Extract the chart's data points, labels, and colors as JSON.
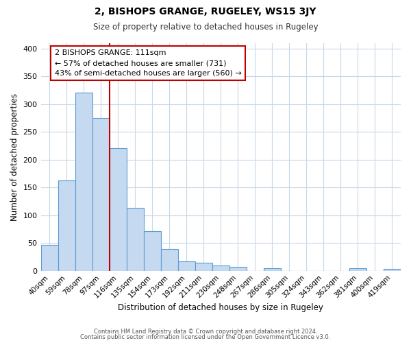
{
  "title": "2, BISHOPS GRANGE, RUGELEY, WS15 3JY",
  "subtitle": "Size of property relative to detached houses in Rugeley",
  "xlabel": "Distribution of detached houses by size in Rugeley",
  "ylabel": "Number of detached properties",
  "bar_labels": [
    "40sqm",
    "59sqm",
    "78sqm",
    "97sqm",
    "116sqm",
    "135sqm",
    "154sqm",
    "173sqm",
    "192sqm",
    "211sqm",
    "230sqm",
    "248sqm",
    "267sqm",
    "286sqm",
    "305sqm",
    "324sqm",
    "343sqm",
    "362sqm",
    "381sqm",
    "400sqm",
    "419sqm"
  ],
  "bar_heights": [
    47,
    163,
    320,
    275,
    220,
    113,
    71,
    39,
    17,
    15,
    10,
    7,
    0,
    5,
    0,
    0,
    0,
    0,
    4,
    0,
    3
  ],
  "bar_color": "#c5d9f0",
  "bar_edge_color": "#5b9bd5",
  "vline_color": "#c00000",
  "annotation_title": "2 BISHOPS GRANGE: 111sqm",
  "annotation_line1": "← 57% of detached houses are smaller (731)",
  "annotation_line2": "43% of semi-detached houses are larger (560) →",
  "ylim": [
    0,
    410
  ],
  "yticks": [
    0,
    50,
    100,
    150,
    200,
    250,
    300,
    350,
    400
  ],
  "footer_line1": "Contains HM Land Registry data © Crown copyright and database right 2024.",
  "footer_line2": "Contains public sector information licensed under the Open Government Licence v3.0.",
  "background_color": "#ffffff",
  "grid_color": "#c8d8e8",
  "fig_width": 6.0,
  "fig_height": 5.0
}
